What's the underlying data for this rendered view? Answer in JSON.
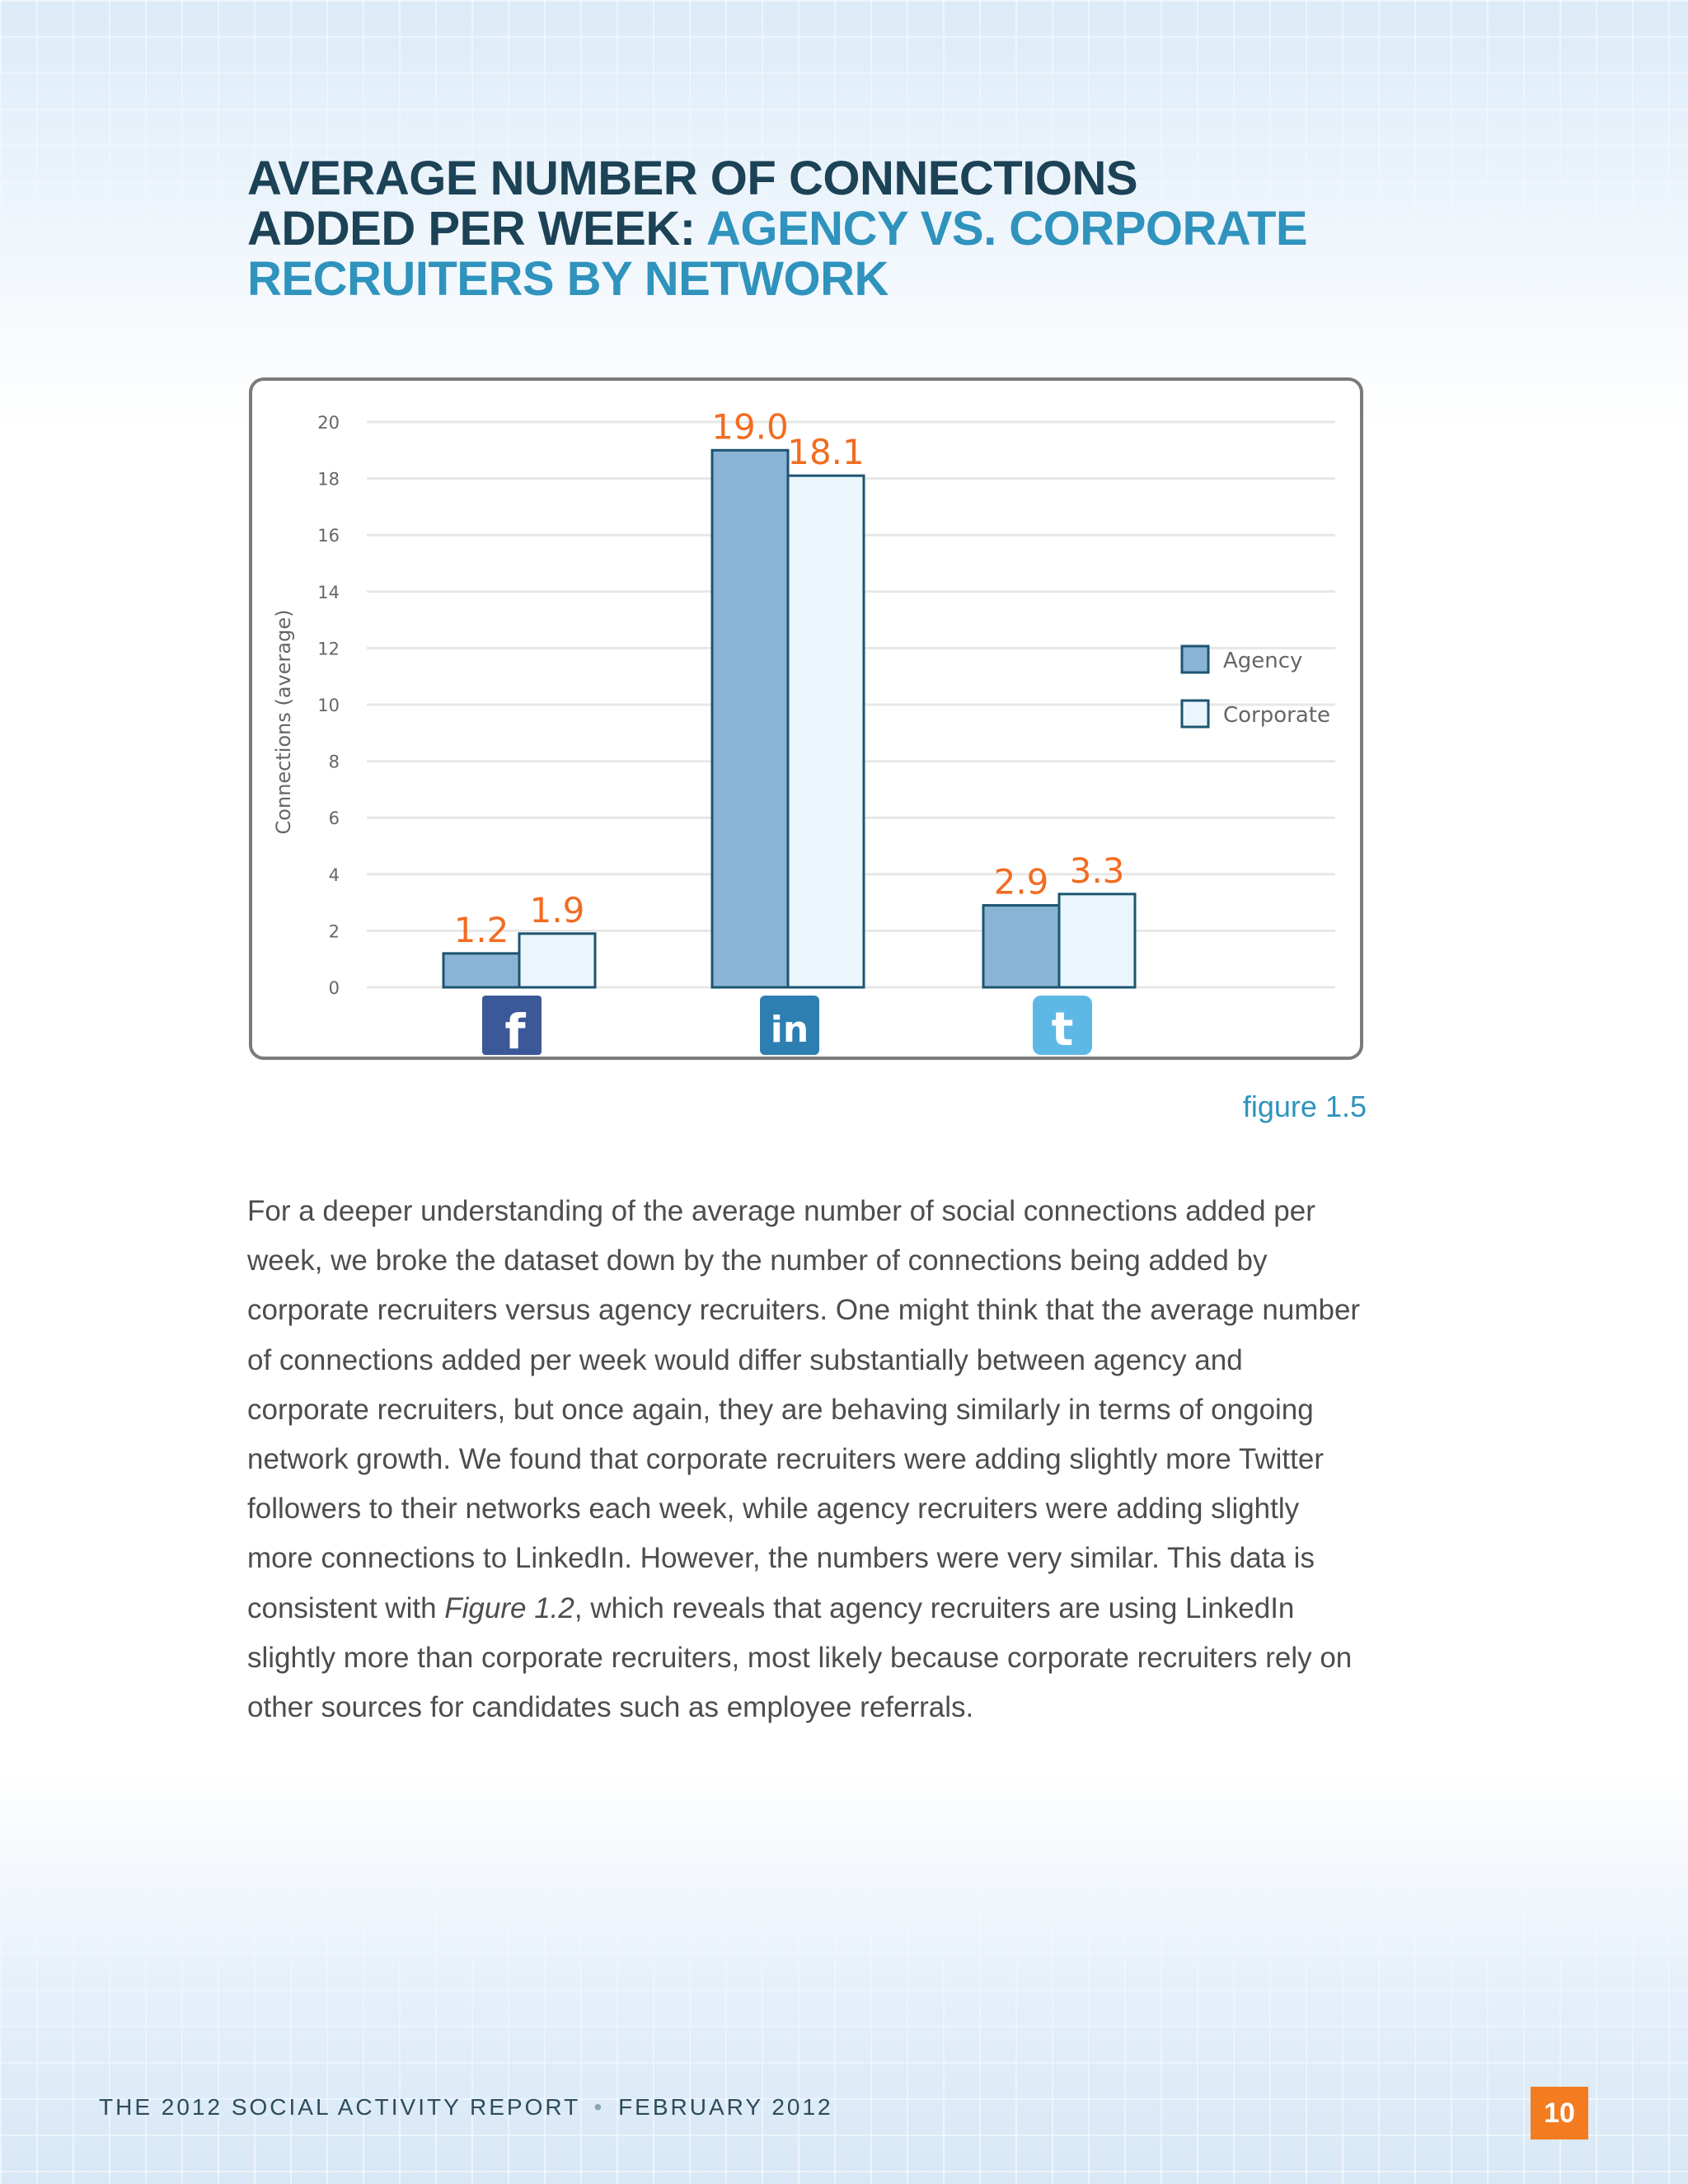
{
  "title": {
    "line1": "AVERAGE NUMBER OF CONNECTIONS",
    "line2_dark": "ADDED PER WEEK:",
    "line2_light": "AGENCY VS. CORPORATE",
    "line3": "RECRUITERS BY NETWORK"
  },
  "chart_data": {
    "type": "bar",
    "categories": [
      "Facebook",
      "LinkedIn",
      "Twitter"
    ],
    "category_icons": [
      "facebook-icon",
      "linkedin-icon",
      "twitter-icon"
    ],
    "series": [
      {
        "name": "Agency",
        "values": [
          1.2,
          19.0,
          2.9
        ],
        "labels": [
          "1.2",
          "19.0",
          "2.9"
        ],
        "color": "#8ab4d6"
      },
      {
        "name": "Corporate",
        "values": [
          1.9,
          18.1,
          3.3
        ],
        "labels": [
          "1.9",
          "18.1",
          "3.3"
        ],
        "color": "#eaf6fc"
      }
    ],
    "ylabel": "Connections (average)",
    "ylim": [
      0,
      20
    ],
    "yticks": [
      "0",
      "2",
      "4",
      "6",
      "8",
      "10",
      "12",
      "14",
      "16",
      "18",
      "20"
    ],
    "grid": true,
    "legend": "right",
    "label_color": "#f26c21"
  },
  "figure_caption": "figure 1.5",
  "body": {
    "before_ref": "For a deeper understanding of the average number of social connections added per week, we broke the dataset down by the number of connections being added by corporate recruiters versus agency recruiters. One might think that the average number of connections added per week would differ substantially between agency and corporate recruiters, but once again, they are behaving similarly in terms of ongoing network growth.  We found that corporate recruiters were adding slightly more Twitter followers to their networks each week, while agency recruiters were adding slightly more connections to LinkedIn. However, the numbers were very similar. This data is consistent with ",
    "ref": "Figure 1.2",
    "after_ref": ", which reveals that agency recruiters are using LinkedIn slightly more than corporate recruiters, most likely because corporate recruiters rely on other sources for candidates such as employee referrals."
  },
  "footer": {
    "left": "THE 2012 SOCIAL ACTIVITY REPORT",
    "separator": "•",
    "right": "FEBRUARY 2012"
  },
  "page_number": "10"
}
